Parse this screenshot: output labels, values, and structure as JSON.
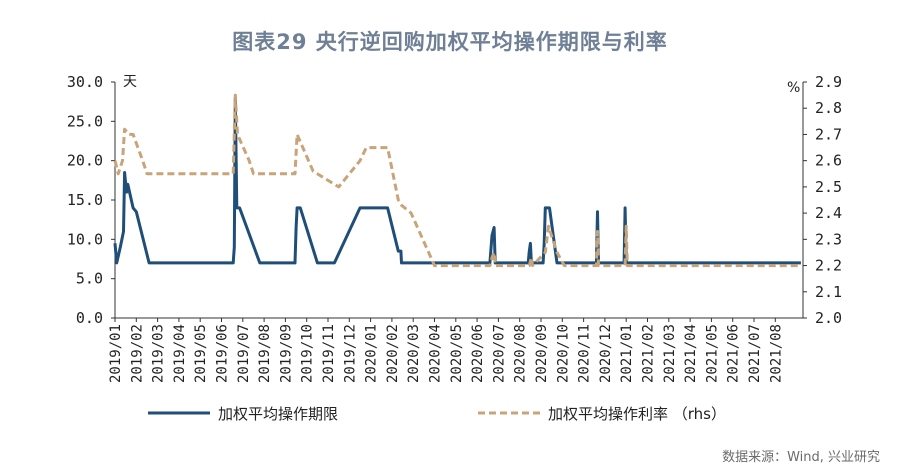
{
  "title": "图表29 央行逆回购加权平均操作期限与利率",
  "source": "数据来源：Wind, 兴业研究",
  "chart_data": {
    "type": "line",
    "y_left": {
      "unit": "天",
      "min": 0,
      "max": 30,
      "ticks": [
        "0.0",
        "5.0",
        "10.0",
        "15.0",
        "20.0",
        "25.0",
        "30.0"
      ]
    },
    "y_right": {
      "unit": "%",
      "min": 2.0,
      "max": 2.9,
      "ticks": [
        "2.0",
        "2.1",
        "2.2",
        "2.3",
        "2.4",
        "2.5",
        "2.6",
        "2.7",
        "2.8",
        "2.9"
      ]
    },
    "x_ticks": [
      "2019/01",
      "2019/02",
      "2019/03",
      "2019/04",
      "2019/05",
      "2019/06",
      "2019/07",
      "2019/08",
      "2019/09",
      "2019/10",
      "2019/11",
      "2019/12",
      "2020/01",
      "2020/02",
      "2020/03",
      "2020/04",
      "2020/05",
      "2020/06",
      "2020/07",
      "2020/08",
      "2020/09",
      "2020/10",
      "2020/11",
      "2020/12",
      "2021/01",
      "2021/02",
      "2021/03",
      "2021/04",
      "2021/05",
      "2021/06",
      "2021/07",
      "2021/08"
    ],
    "x_range": [
      0,
      32.3
    ],
    "legend_position": "bottom",
    "series": [
      {
        "name": "加权平均操作期限",
        "axis": "left",
        "color": "#1f4e79",
        "style": "solid",
        "points": [
          [
            0,
            9.5
          ],
          [
            0.08,
            7
          ],
          [
            0.25,
            9
          ],
          [
            0.4,
            11
          ],
          [
            0.45,
            18.5
          ],
          [
            0.5,
            17
          ],
          [
            0.55,
            16
          ],
          [
            0.6,
            17
          ],
          [
            0.85,
            14
          ],
          [
            1.0,
            13.5
          ],
          [
            1.6,
            7
          ],
          [
            5.55,
            7
          ],
          [
            5.6,
            9
          ],
          [
            5.65,
            28
          ],
          [
            5.72,
            14
          ],
          [
            5.85,
            14
          ],
          [
            6.8,
            7
          ],
          [
            8.45,
            7
          ],
          [
            8.5,
            11.5
          ],
          [
            8.55,
            14
          ],
          [
            8.7,
            14
          ],
          [
            9.5,
            7
          ],
          [
            10.3,
            7
          ],
          [
            11.5,
            14
          ],
          [
            12.8,
            14
          ],
          [
            13.3,
            8.5
          ],
          [
            13.42,
            8.5
          ],
          [
            13.45,
            7
          ],
          [
            17.6,
            7
          ],
          [
            17.7,
            10.5
          ],
          [
            17.8,
            11.5
          ],
          [
            17.85,
            7
          ],
          [
            19.4,
            7
          ],
          [
            19.45,
            8.5
          ],
          [
            19.5,
            9.5
          ],
          [
            19.55,
            7
          ],
          [
            20.1,
            7
          ],
          [
            20.15,
            9.5
          ],
          [
            20.2,
            14
          ],
          [
            20.4,
            14
          ],
          [
            20.75,
            7
          ],
          [
            22.6,
            7
          ],
          [
            22.65,
            13.5
          ],
          [
            22.7,
            7
          ],
          [
            23.9,
            7
          ],
          [
            23.95,
            14
          ],
          [
            24.0,
            7
          ],
          [
            32.2,
            7
          ]
        ]
      },
      {
        "name": "加权平均操作利率 （rhs）",
        "axis": "right",
        "color": "#c8a478",
        "style": "dashed",
        "points": [
          [
            0,
            2.6
          ],
          [
            0.15,
            2.55
          ],
          [
            0.35,
            2.6
          ],
          [
            0.45,
            2.72
          ],
          [
            0.65,
            2.7
          ],
          [
            0.85,
            2.7
          ],
          [
            1.3,
            2.6
          ],
          [
            1.5,
            2.55
          ],
          [
            5.55,
            2.55
          ],
          [
            5.65,
            2.85
          ],
          [
            5.75,
            2.7
          ],
          [
            6.3,
            2.6
          ],
          [
            6.5,
            2.55
          ],
          [
            8.45,
            2.55
          ],
          [
            8.55,
            2.7
          ],
          [
            9.3,
            2.56
          ],
          [
            10.5,
            2.5
          ],
          [
            11.5,
            2.6
          ],
          [
            11.8,
            2.65
          ],
          [
            12.8,
            2.65
          ],
          [
            13.3,
            2.45
          ],
          [
            13.45,
            2.43
          ],
          [
            13.9,
            2.4
          ],
          [
            15.0,
            2.2
          ],
          [
            17.6,
            2.2
          ],
          [
            17.7,
            2.23
          ],
          [
            17.8,
            2.25
          ],
          [
            17.85,
            2.2
          ],
          [
            19.45,
            2.2
          ],
          [
            19.55,
            2.23
          ],
          [
            19.6,
            2.2
          ],
          [
            20.2,
            2.25
          ],
          [
            20.35,
            2.35
          ],
          [
            20.75,
            2.25
          ],
          [
            21.1,
            2.2
          ],
          [
            22.6,
            2.2
          ],
          [
            22.65,
            2.33
          ],
          [
            22.7,
            2.2
          ],
          [
            23.95,
            2.2
          ],
          [
            24.0,
            2.35
          ],
          [
            24.05,
            2.2
          ],
          [
            32.2,
            2.2
          ]
        ]
      }
    ]
  }
}
